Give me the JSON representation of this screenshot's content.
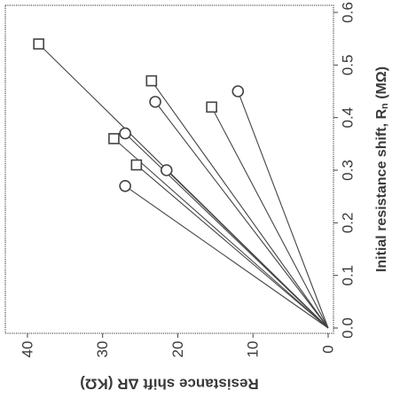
{
  "chart_data": {
    "type": "scatter",
    "orientation": "rotated-90-clockwise",
    "title": "",
    "xlabel": "Initial resistance shift, R",
    "xlabel_subscript": "n",
    "xlabel_unit": " (MΩ)",
    "ylabel": "Resistance shift ΔR (KΩ)",
    "xlim": [
      0.0,
      0.6
    ],
    "ylim": [
      0,
      42
    ],
    "xticks": [
      "0.0",
      "0.1",
      "0.2",
      "0.3",
      "0.4",
      "0.5",
      "0.6"
    ],
    "yticks": [
      "0",
      "10",
      "20",
      "30",
      "40"
    ],
    "grid": false,
    "legend": "none",
    "origin": [
      0.0,
      0.0
    ],
    "series": [
      {
        "marker": "square",
        "points": [
          {
            "x": 0.54,
            "y": 38.5
          },
          {
            "x": 0.47,
            "y": 23.5
          },
          {
            "x": 0.42,
            "y": 15.5
          },
          {
            "x": 0.36,
            "y": 28.5
          },
          {
            "x": 0.31,
            "y": 25.5
          }
        ]
      },
      {
        "marker": "circle",
        "points": [
          {
            "x": 0.45,
            "y": 12.0
          },
          {
            "x": 0.43,
            "y": 23.0
          },
          {
            "x": 0.37,
            "y": 27.0
          },
          {
            "x": 0.3,
            "y": 21.5
          },
          {
            "x": 0.27,
            "y": 27.0
          }
        ]
      }
    ]
  }
}
